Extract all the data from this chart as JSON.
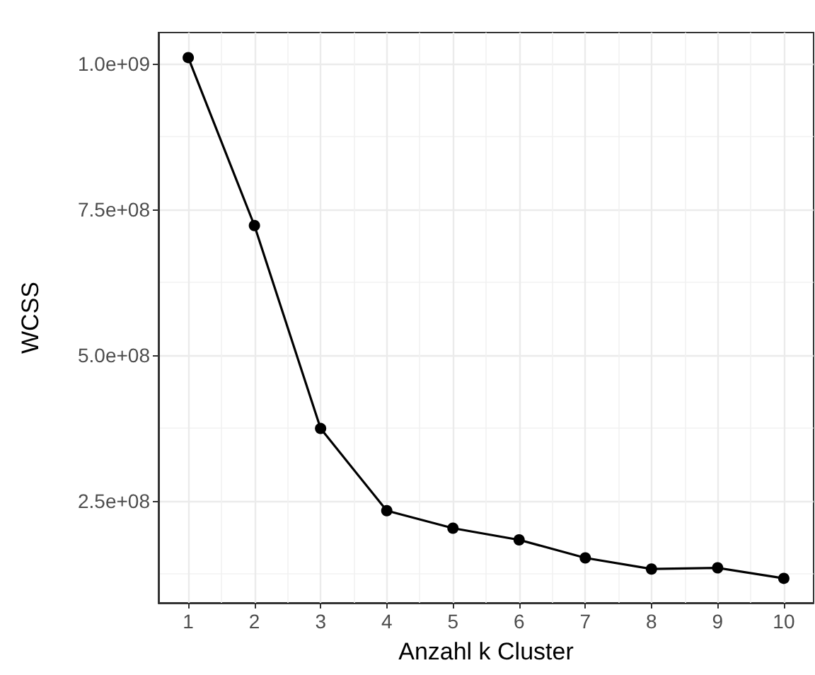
{
  "chart_data": {
    "type": "line",
    "xlabel": "Anzahl k Cluster",
    "ylabel": "WCSS",
    "x": [
      1,
      2,
      3,
      4,
      5,
      6,
      7,
      8,
      9,
      10
    ],
    "series": [
      {
        "color": "#000000",
        "values": [
          1010000000,
          722000000,
          374000000,
          233000000,
          203000000,
          183000000,
          152000000,
          133000000,
          135000000,
          117000000
        ]
      }
    ],
    "xlim": [
      0.55,
      10.45
    ],
    "xticks": [
      1,
      2,
      3,
      4,
      5,
      6,
      7,
      8,
      9,
      10
    ],
    "ylim": [
      75000000,
      1053000000
    ],
    "yticks": [
      {
        "value": 250000000,
        "label": "2.5e+08"
      },
      {
        "value": 500000000,
        "label": "5.0e+08"
      },
      {
        "value": 750000000,
        "label": "7.5e+08"
      },
      {
        "value": 1000000000,
        "label": "1.0e+09"
      }
    ],
    "grid": true,
    "marker": "circle",
    "line_style": "solid"
  }
}
